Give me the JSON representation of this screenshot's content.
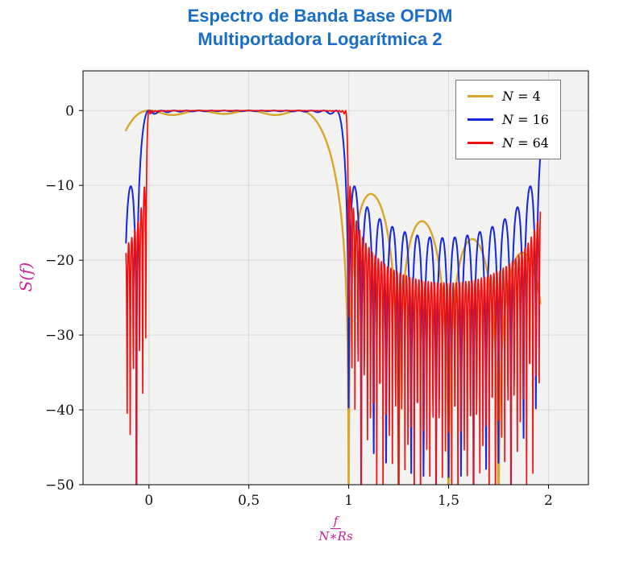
{
  "page": {
    "title_line1": "Espectro de Banda Base OFDM",
    "title_line2": "Multiportadora Logarítmica 2",
    "title_color": "#1b6ec8"
  },
  "chart_data": {
    "type": "line",
    "title": "Espectro de Banda Base OFDM Multiportadora Logarítmica 2",
    "ylabel": "S(f)",
    "xlabel": "f/(N∗Rs)",
    "xlabel_num": "f",
    "xlabel_den": "N∗Rs",
    "axis_label_color": "#cf2196",
    "plot_bg": "#f2f2f0",
    "grid_color": "#d9d9d9",
    "grid": true,
    "xlim": [
      -0.33,
      2.2
    ],
    "ylim": [
      -50,
      5.3
    ],
    "xticks": {
      "values": [
        0,
        0.5,
        1,
        1.5,
        2
      ],
      "labels": [
        "0",
        "0,5",
        "1",
        "1,5",
        "2"
      ]
    },
    "yticks": {
      "values": [
        0,
        -10,
        -20,
        -30,
        -40,
        -50
      ],
      "labels": [
        "0",
        "−10",
        "−20",
        "−30",
        "−40",
        "−50"
      ]
    },
    "x_data_range": [
      -0.115,
      1.96
    ],
    "sample_step": 0.0015,
    "model": "OFDM baseband power spectrum, N subcarriers at x_k=k/N (x=f/(N*Rs)): S_N(x)=10*log10(sum_{k=0}^{N-1} D_N(x-k/N)^2). D is sinc(N*u) for N=4 and the period-2 Dirichlet kernel sin(pi*u*N)/(2N*sin(pi*u/2)) for N=16 and N=64 (2x-oversampling image lobe rising near x=2). Flat 0 dB band over 0<=x<=1, deep left-edge notches below x=0, decaying sidelobes with nulls at x=m/N beyond x=1; at the right edge the N=16 curve spikes to about -8 dB and the N=64 curve to about -15 dB.",
    "legend": {
      "position": "top-right",
      "entries": [
        "N = 4",
        "N = 16",
        "N = 64"
      ]
    },
    "series": [
      {
        "label": "N = 4",
        "N": 4,
        "color": "#d9a62c",
        "periodic": false,
        "width": 2.4
      },
      {
        "label": "N = 16",
        "N": 16,
        "color": "#1527dd",
        "periodic": true,
        "width": 2.0
      },
      {
        "label": "N = 64",
        "N": 64,
        "color": "#ee1111",
        "periodic": true,
        "width": 1.7
      }
    ]
  }
}
